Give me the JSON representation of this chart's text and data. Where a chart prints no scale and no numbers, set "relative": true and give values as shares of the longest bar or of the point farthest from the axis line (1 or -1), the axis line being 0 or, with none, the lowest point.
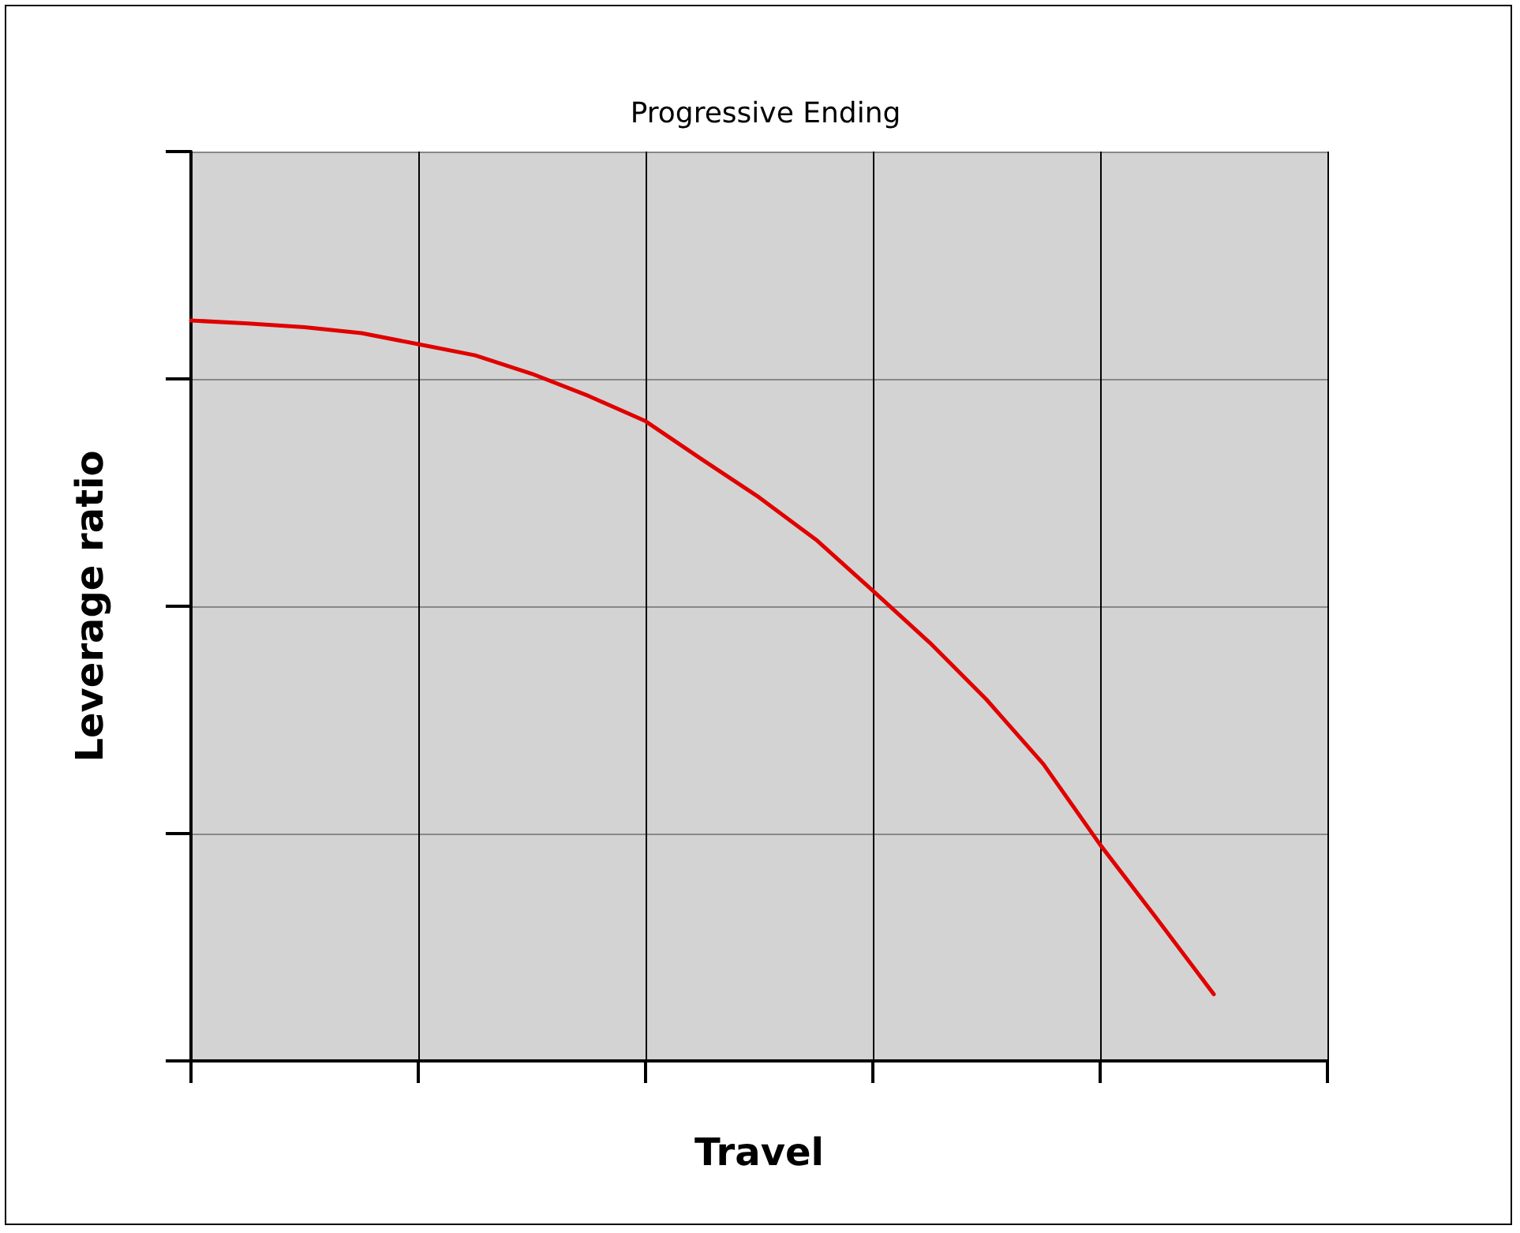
{
  "chart_data": {
    "type": "line",
    "title": "Progressive Ending",
    "xlabel": "Travel",
    "ylabel": "Leverage ratio",
    "relative": true,
    "grid": true,
    "categories": [
      null,
      null,
      null,
      null,
      null,
      null,
      null,
      null,
      null,
      null,
      null,
      null,
      null,
      null,
      null,
      null,
      null,
      null,
      null,
      null,
      null
    ],
    "series": [
      {
        "color": "#e00000",
        "values": [
          1.0,
          0.996,
          0.991,
          0.983,
          0.968,
          0.953,
          0.928,
          0.898,
          0.864,
          0.812,
          0.761,
          0.704,
          0.635,
          0.565,
          0.488,
          0.401,
          0.292,
          0.192,
          0.09,
          null,
          null
        ]
      }
    ]
  }
}
